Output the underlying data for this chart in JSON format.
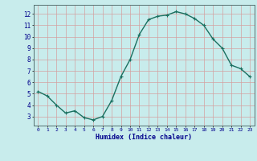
{
  "x": [
    0,
    1,
    2,
    3,
    4,
    5,
    6,
    7,
    8,
    9,
    10,
    11,
    12,
    13,
    14,
    15,
    16,
    17,
    18,
    19,
    20,
    21,
    22,
    23
  ],
  "y": [
    5.2,
    4.8,
    4.0,
    3.3,
    3.5,
    2.9,
    2.7,
    3.0,
    4.4,
    6.5,
    8.0,
    10.2,
    11.5,
    11.8,
    11.9,
    12.2,
    12.0,
    11.6,
    11.0,
    9.8,
    9.0,
    7.5,
    7.2,
    6.5
  ],
  "xlabel": "Humidex (Indice chaleur)",
  "ylim": [
    2.2,
    12.8
  ],
  "xlim": [
    -0.5,
    23.5
  ],
  "yticks": [
    3,
    4,
    5,
    6,
    7,
    8,
    9,
    10,
    11,
    12
  ],
  "xticks": [
    0,
    1,
    2,
    3,
    4,
    5,
    6,
    7,
    8,
    9,
    10,
    11,
    12,
    13,
    14,
    15,
    16,
    17,
    18,
    19,
    20,
    21,
    22,
    23
  ],
  "line_color": "#1a7060",
  "marker_color": "#1a7060",
  "bg_color": "#c8ecec",
  "grid_color": "#d4a0a0",
  "xlabel_color": "#00008b",
  "tick_label_color": "#00008b",
  "marker": "+",
  "linewidth": 1.0,
  "markersize": 3.5
}
